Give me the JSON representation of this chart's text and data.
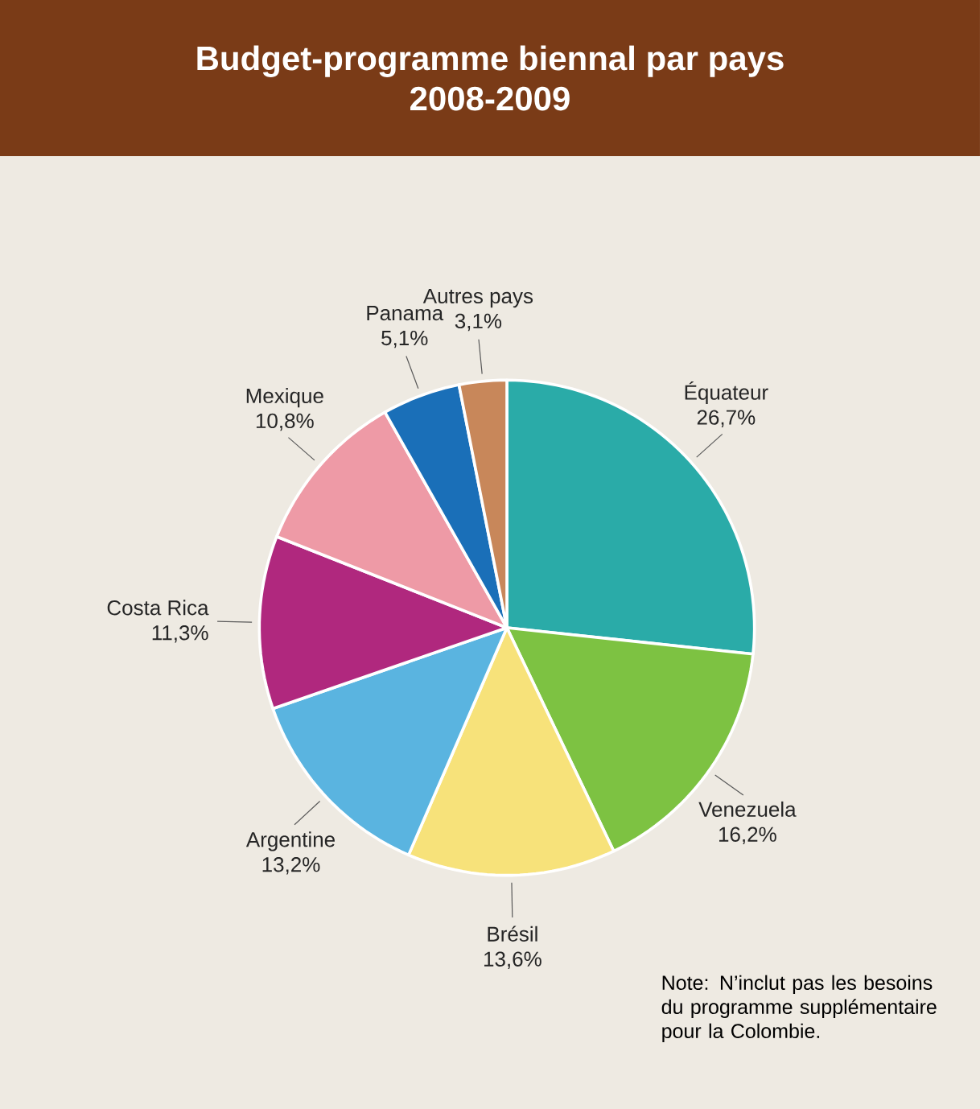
{
  "chart_data": {
    "type": "pie",
    "title": "Budget-programme biennal par pays",
    "subtitle": "2008-2009",
    "categories": [
      "Équateur",
      "Venezuela",
      "Brésil",
      "Argentine",
      "Costa Rica",
      "Mexique",
      "Panama",
      "Autres pays"
    ],
    "values": [
      26.7,
      16.2,
      13.6,
      13.2,
      11.3,
      10.8,
      5.1,
      3.1
    ],
    "value_labels": [
      "26,7%",
      "16,2%",
      "13,6%",
      "13,2%",
      "11,3%",
      "10,8%",
      "5,1%",
      "3,1%"
    ],
    "colors": [
      "#2aaba8",
      "#7dc242",
      "#f7e27a",
      "#5ab4e0",
      "#b0287e",
      "#ee9aa6",
      "#1a6fb8",
      "#c8875a"
    ],
    "annotations": [
      "Note: N’inclut pas les besoins du programme supplémentaire pour la Colombie."
    ]
  }
}
